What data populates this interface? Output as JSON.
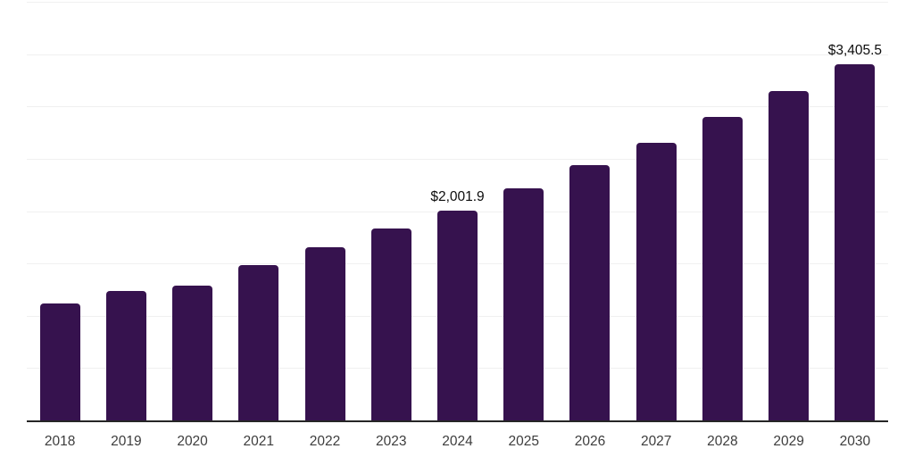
{
  "chart_data": {
    "type": "bar",
    "title": "",
    "xlabel": "",
    "ylabel": "",
    "categories": [
      "2018",
      "2019",
      "2020",
      "2021",
      "2022",
      "2023",
      "2024",
      "2025",
      "2026",
      "2027",
      "2028",
      "2029",
      "2030"
    ],
    "values": [
      1120,
      1240,
      1290,
      1485,
      1655,
      1830,
      2001.9,
      2215,
      2435,
      2655,
      2900,
      3150,
      3405.5
    ],
    "value_labels": {
      "2024": "$2,001.9",
      "2030": "$3,405.5"
    },
    "ylim": [
      0,
      4000
    ],
    "gridline_step": 500,
    "grid": "horizontal-only",
    "legend": "none",
    "colors": {
      "bar": "#36124E",
      "gridline": "#f0f0f0",
      "axis_line": "#262626",
      "tick_label": "#3d3d3d",
      "value_label": "#0d0d0d"
    }
  }
}
